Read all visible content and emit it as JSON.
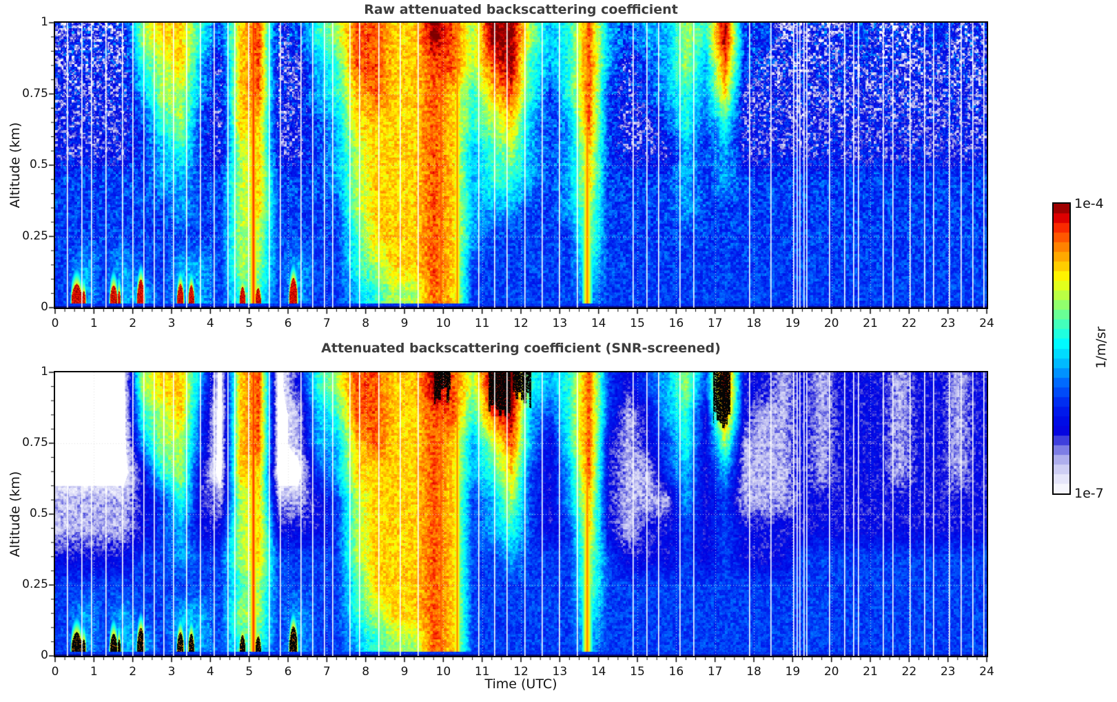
{
  "chart_data": {
    "type": "heatmap",
    "xlabel": "Time (UTC)",
    "x_range": [
      0,
      24
    ],
    "y_range": [
      0,
      1
    ],
    "x_ticks": [
      0,
      1,
      2,
      3,
      4,
      5,
      6,
      7,
      8,
      9,
      10,
      11,
      12,
      13,
      14,
      15,
      16,
      17,
      18,
      19,
      20,
      21,
      22,
      23,
      24
    ],
    "y_ticks": [
      "0",
      "0.25",
      "0.5",
      "0.75",
      "1"
    ],
    "value_range": [
      "1e-7",
      "1e-4"
    ],
    "colorbar": {
      "label": "1/m/sr",
      "tick_top": "1e-4",
      "tick_bottom": "1e-7",
      "n_segments": 30,
      "stops": [
        {
          "t": 0.0,
          "c": "#ffffff"
        },
        {
          "t": 0.05,
          "c": "#e6e6fa"
        },
        {
          "t": 0.1,
          "c": "#c3c3f2"
        },
        {
          "t": 0.14,
          "c": "#9191e8"
        },
        {
          "t": 0.18,
          "c": "#4545dd"
        },
        {
          "t": 0.22,
          "c": "#0000e1"
        },
        {
          "t": 0.3,
          "c": "#0020ee"
        },
        {
          "t": 0.38,
          "c": "#0066ff"
        },
        {
          "t": 0.45,
          "c": "#00bbff"
        },
        {
          "t": 0.52,
          "c": "#00ffff"
        },
        {
          "t": 0.6,
          "c": "#55ffaa"
        },
        {
          "t": 0.67,
          "c": "#aaff55"
        },
        {
          "t": 0.74,
          "c": "#ffff00"
        },
        {
          "t": 0.8,
          "c": "#ffbb00"
        },
        {
          "t": 0.86,
          "c": "#ff7700"
        },
        {
          "t": 0.91,
          "c": "#ff3300"
        },
        {
          "t": 0.95,
          "c": "#dd0000"
        },
        {
          "t": 1.0,
          "c": "#7f0000"
        }
      ]
    },
    "panels": [
      {
        "title": "Raw attenuated backscattering coefficient",
        "ylabel": "Altitude (km)",
        "screened": false,
        "grid": [
          "222267753782356887798699645843446593322223222322",
          "222256742782245887788689545842346483222222222222",
          "222246642782245787787578535832345472222222222222",
          "222235632772234777787567434832235352222222222222",
          "222234532672234677787456434732224342222222222222",
          "333334433673334677787455434733334343333333333333",
          "333333433673333677787444334633334333333333333333",
          "333333333663333577787433333633333333333333333333",
          "343433443663433567787333333533333333333333333333",
          "343443443553433456687333333433333333333333333333"
        ]
      },
      {
        "title": "Attenuated backscattering coefficient (SNR-screened)",
        "ylabel": "Altitude (km)",
        "screened": true,
        "grid": [
          "000067740780256887798699545832346392212122212212",
          "000056730780145887788589435831245282112122212212",
          "000046630780144787787468425821235261112122212212",
          "000025620770034777787457324821134241112122212212",
          "111123521671123677787346324721114231112222222222",
          "111123422672223677787345323721223232222222222222",
          "222233433673333677787334333632223232223333333333",
          "333333333563333577787333333633333333333333333333",
          "343433443663433567787333333533333333333333333333",
          "343443443553433456687333333433333333333333333333"
        ],
        "black_regions": [
          {
            "t0": 9.75,
            "t1": 10.18,
            "a0": 0.92,
            "a1": 1.0
          },
          {
            "t0": 11.15,
            "t1": 11.72,
            "a0": 0.87,
            "a1": 1.0
          },
          {
            "t0": 11.78,
            "t1": 12.25,
            "a0": 0.9,
            "a1": 1.0
          },
          {
            "t0": 16.95,
            "t1": 17.38,
            "a0": 0.84,
            "a1": 1.0
          }
        ]
      }
    ],
    "surface_blobs": [
      {
        "t": 0.55,
        "w": 0.13,
        "h": 0.085
      },
      {
        "t": 0.73,
        "w": 0.05,
        "h": 0.06
      },
      {
        "t": 1.5,
        "w": 0.09,
        "h": 0.08
      },
      {
        "t": 1.64,
        "w": 0.04,
        "h": 0.06
      },
      {
        "t": 2.2,
        "w": 0.09,
        "h": 0.1
      },
      {
        "t": 3.22,
        "w": 0.08,
        "h": 0.085
      },
      {
        "t": 3.5,
        "w": 0.07,
        "h": 0.08
      },
      {
        "t": 4.82,
        "w": 0.07,
        "h": 0.075
      },
      {
        "t": 5.22,
        "w": 0.07,
        "h": 0.07
      },
      {
        "t": 6.13,
        "w": 0.1,
        "h": 0.105
      }
    ],
    "intense_columns": [
      {
        "t": 5.1,
        "w": 0.1,
        "v": 0.93
      },
      {
        "t": 9.93,
        "w": 0.13,
        "v": 0.9
      },
      {
        "t": 10.35,
        "w": 0.1,
        "v": 0.86
      },
      {
        "t": 13.7,
        "w": 0.13,
        "v": 0.86
      }
    ],
    "gap_times": [
      0.3,
      0.68,
      0.93,
      1.3,
      1.72,
      1.98,
      2.27,
      2.53,
      2.78,
      3.03,
      3.38,
      3.72,
      4.08,
      4.43,
      4.62,
      4.97,
      5.5,
      5.78,
      6.32,
      6.63,
      6.92,
      7.13,
      7.58,
      7.82,
      8.33,
      8.88,
      9.33,
      10.9,
      11.3,
      11.62,
      12.08,
      12.53,
      12.98,
      13.43,
      14.88,
      15.23,
      15.53,
      16.08,
      16.43,
      17.88,
      18.43,
      19.02,
      19.1,
      19.18,
      19.27,
      19.35,
      19.93,
      20.32,
      20.55,
      20.68,
      21.32,
      21.57,
      22.02,
      22.38,
      22.62,
      23.02,
      23.33,
      23.63,
      23.92
    ]
  }
}
